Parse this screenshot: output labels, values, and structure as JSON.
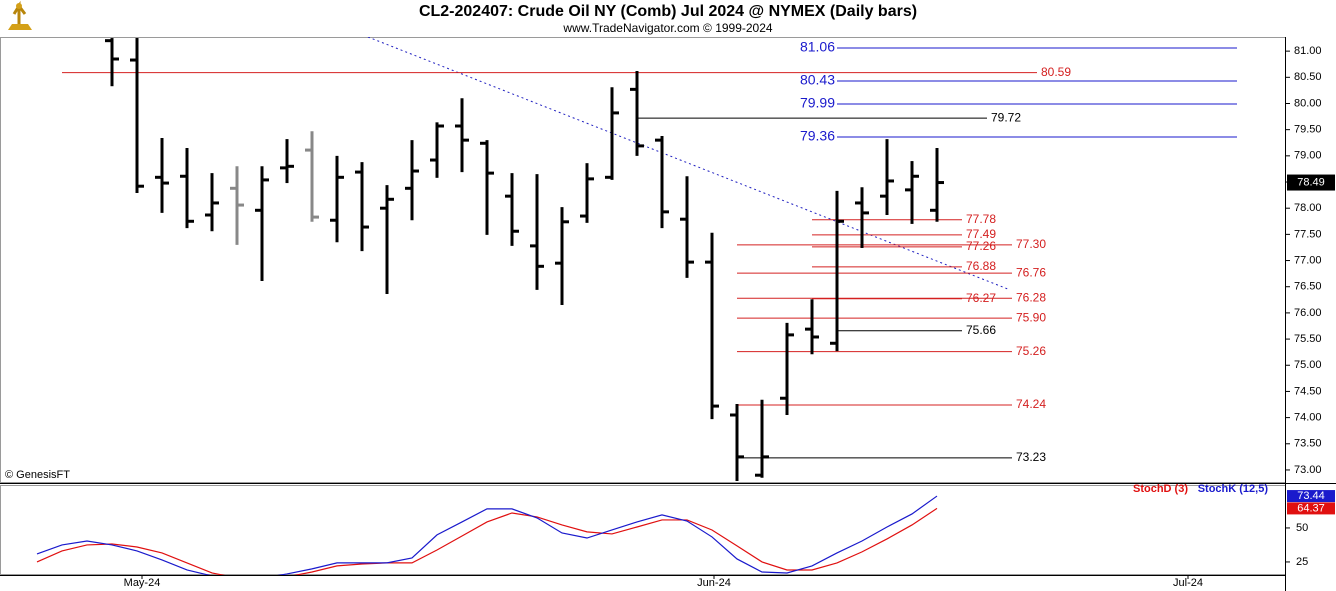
{
  "chart_data": [
    {
      "type": "ohlc",
      "title": "CL2-202407:  Crude Oil NY (Comb) Jul 2024 @ NYMEX  (Daily bars)",
      "subtitle": "www.TradeNavigator.com © 1999-2024",
      "watermark": "© GenesisFT",
      "open": [
        null,
        null,
        null,
        81.2,
        80.83,
        78.59,
        78.61,
        77.87,
        78.38,
        77.96,
        78.77,
        79.11,
        77.77,
        78.69,
        78.0,
        78.38,
        78.92,
        79.57,
        79.24,
        78.23,
        77.28,
        76.95,
        77.85,
        78.59,
        80.27,
        79.3,
        77.79,
        76.97,
        74.05,
        72.9,
        74.37,
        75.69,
        75.42,
        78.1,
        78.23,
        78.35,
        77.96
      ],
      "high": [
        null,
        null,
        null,
        81.25,
        81.25,
        79.34,
        79.15,
        78.67,
        78.8,
        78.8,
        79.32,
        79.47,
        79.0,
        78.88,
        78.44,
        79.3,
        79.64,
        80.1,
        79.3,
        78.67,
        78.65,
        78.02,
        78.86,
        80.31,
        80.62,
        79.38,
        78.61,
        77.53,
        74.26,
        74.34,
        75.81,
        76.26,
        78.33,
        78.4,
        79.32,
        78.9,
        79.15
      ],
      "low": [
        null,
        null,
        null,
        80.33,
        78.29,
        77.91,
        77.62,
        77.56,
        77.3,
        76.61,
        78.48,
        77.74,
        77.35,
        77.18,
        76.36,
        77.77,
        78.58,
        78.69,
        77.49,
        77.28,
        76.44,
        76.15,
        77.72,
        78.54,
        79.0,
        77.62,
        76.67,
        73.97,
        72.79,
        72.85,
        74.05,
        75.21,
        75.27,
        77.24,
        77.87,
        77.7,
        77.74
      ],
      "close": [
        null,
        null,
        null,
        80.85,
        78.42,
        78.48,
        77.75,
        78.1,
        78.06,
        78.54,
        78.8,
        77.83,
        78.59,
        77.64,
        78.17,
        78.71,
        79.57,
        79.3,
        78.67,
        77.56,
        76.89,
        77.74,
        78.56,
        79.82,
        79.19,
        77.93,
        76.97,
        74.22,
        73.25,
        73.25,
        75.58,
        75.54,
        77.75,
        77.91,
        78.52,
        78.61,
        78.49
      ],
      "bar_colors": [
        null,
        null,
        null,
        "#000000",
        "#000000",
        "#000000",
        "#000000",
        "#000000",
        "#888888",
        "#000000",
        "#000000",
        "#888888",
        "#000000",
        "#000000",
        "#000000",
        "#000000",
        "#000000",
        "#000000",
        "#000000",
        "#000000",
        "#000000",
        "#000000",
        "#000000",
        "#000000",
        "#000000",
        "#000000",
        "#000000",
        "#000000",
        "#000000",
        "#000000",
        "#000000",
        "#000000",
        "#000000",
        "#000000",
        "#000000",
        "#000000",
        "#000000"
      ],
      "xlim": [
        -1.48,
        49.92
      ],
      "ylim": [
        72.77,
        81.27
      ],
      "yticks": [
        {
          "value": 73,
          "label": "73.00"
        },
        {
          "value": 73.5,
          "label": "73.50"
        },
        {
          "value": 74,
          "label": "74.00"
        },
        {
          "value": 74.5,
          "label": "74.50"
        },
        {
          "value": 75,
          "label": "75.00"
        },
        {
          "value": 75.5,
          "label": "75.50"
        },
        {
          "value": 76,
          "label": "76.00"
        },
        {
          "value": 76.5,
          "label": "76.50"
        },
        {
          "value": 77,
          "label": "77.00"
        },
        {
          "value": 77.5,
          "label": "77.50"
        },
        {
          "value": 78,
          "label": "78.00"
        },
        {
          "value": 78.5,
          "label": "78.50"
        },
        {
          "value": 79,
          "label": "79.00"
        },
        {
          "value": 79.5,
          "label": "79.50"
        },
        {
          "value": 80,
          "label": "80.00"
        },
        {
          "value": 80.5,
          "label": "80.50"
        },
        {
          "value": 81,
          "label": "81.00"
        }
      ],
      "levels": [
        {
          "value": 81.06,
          "color": "#1a1acc",
          "start": 32,
          "end": 48,
          "label_side": "left"
        },
        {
          "value": 80.43,
          "color": "#1a1acc",
          "start": 32,
          "end": 48,
          "label_side": "left"
        },
        {
          "value": 79.99,
          "color": "#1a1acc",
          "start": 32,
          "end": 48,
          "label_side": "left"
        },
        {
          "value": 79.36,
          "color": "#1a1acc",
          "start": 32,
          "end": 48,
          "label_side": "left"
        },
        {
          "value": 80.59,
          "color": "#d42020",
          "start": 1,
          "end": 40,
          "label_side": "right"
        },
        {
          "value": 79.72,
          "color": "#000000",
          "start": 24,
          "end": 38,
          "label_side": "right"
        },
        {
          "value": 77.78,
          "color": "#d42020",
          "start": 31,
          "end": 37,
          "label_side": "right"
        },
        {
          "value": 77.49,
          "color": "#d42020",
          "start": 31,
          "end": 37,
          "label_side": "right"
        },
        {
          "value": 77.26,
          "color": "#d42020",
          "start": 31,
          "end": 37,
          "label_side": "right"
        },
        {
          "value": 77.3,
          "label": "77.30",
          "color": "#d42020",
          "start": 28,
          "end": 39,
          "label_side": "right"
        },
        {
          "value": 76.88,
          "color": "#d42020",
          "start": 31,
          "end": 37,
          "label_side": "right"
        },
        {
          "value": 76.76,
          "color": "#d42020",
          "start": 28,
          "end": 39,
          "label_side": "right"
        },
        {
          "value": 76.27,
          "color": "#d42020",
          "start": 31,
          "end": 37,
          "label_side": "right"
        },
        {
          "value": 76.28,
          "color": "#d42020",
          "start": 28,
          "end": 39,
          "label_side": "right"
        },
        {
          "value": 75.9,
          "label": "75.90",
          "color": "#d42020",
          "start": 28,
          "end": 39,
          "label_side": "right"
        },
        {
          "value": 75.66,
          "color": "#000000",
          "start": 32,
          "end": 37,
          "label_side": "right"
        },
        {
          "value": 75.26,
          "color": "#d42020",
          "start": 28,
          "end": 39,
          "label_side": "right"
        },
        {
          "value": 74.24,
          "color": "#d42020",
          "start": 28,
          "end": 39,
          "label_side": "right"
        },
        {
          "value": 73.23,
          "color": "#000000",
          "start": 28,
          "end": 39,
          "label_side": "right"
        }
      ],
      "trendline": {
        "points": [
          [
            13.24,
            81.27
          ],
          [
            38.92,
            76.44
          ]
        ],
        "color": "#2020c0"
      }
    },
    {
      "type": "line",
      "series": [
        {
          "name": "StochD (3)",
          "color": "#e01010",
          "values": [
            25,
            33.1,
            37.5,
            38.2,
            36,
            31.6,
            24.3,
            16.9,
            13.2,
            13.2,
            14,
            17.6,
            22.1,
            23.5,
            24.3,
            24.3,
            33.8,
            44.1,
            54.4,
            61,
            58.1,
            52.2,
            47.1,
            45.6,
            50.7,
            55.9,
            55.9,
            48.5,
            36.8,
            25,
            19.1,
            19.1,
            24.3,
            32.4,
            41.9,
            52.2,
            64.37
          ]
        },
        {
          "name": "StochK (12,5)",
          "color": "#1a1acc",
          "values": [
            30.9,
            37.5,
            40.4,
            37.5,
            33.1,
            26.5,
            19.1,
            14.7,
            13,
            13,
            16.2,
            19.9,
            24.3,
            24.3,
            24.3,
            27.9,
            44.9,
            54.4,
            64,
            64,
            57.4,
            46.3,
            42.6,
            48.5,
            54.4,
            59.6,
            55.1,
            43.4,
            27.2,
            17.6,
            16.9,
            22.1,
            31.6,
            40.4,
            50.7,
            60.3,
            73.44
          ]
        }
      ],
      "xlim": [
        -1.48,
        49.92
      ],
      "xticks": [
        {
          "value": 4.2,
          "label": "May-24"
        },
        {
          "value": 27.08,
          "label": "Jun-24"
        },
        {
          "value": 46.04,
          "label": "Jul-24"
        }
      ],
      "ylim": [
        15.4,
        77.9
      ],
      "yticks": [
        25,
        50
      ]
    }
  ]
}
